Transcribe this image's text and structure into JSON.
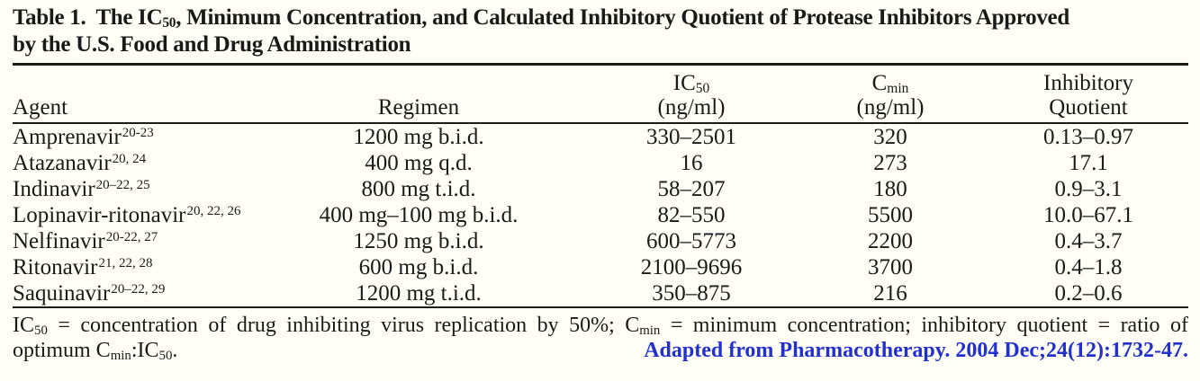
{
  "page": {
    "background_color": "#fffef7",
    "text_color": "#1c1a18",
    "rule_color": "#1c1c1c",
    "citation_blue": "#2130cf"
  },
  "title": {
    "lead": "Table 1.",
    "line1_a": "The IC",
    "line1_sub": "50",
    "line1_b": ", Minimum Concentration, and Calculated Inhibitory Quotient of Protease Inhibitors Approved",
    "line2": "by the U.S. Food and Drug Administration"
  },
  "header": {
    "agent": "Agent",
    "regimen": "Regimen",
    "ic50_abbr": "IC",
    "ic50_sub": "50",
    "ic50_unit": "(ng/ml)",
    "cmin_abbr": "C",
    "cmin_sub": "min",
    "cmin_unit": "(ng/ml)",
    "iq_line1": "Inhibitory",
    "iq_line2": "Quotient"
  },
  "rows": [
    {
      "agent": "Amprenavir",
      "refs": "20-23",
      "regimen": "1200 mg b.i.d.",
      "ic50": "330–2501",
      "cmin": "320",
      "iq": "0.13–0.97"
    },
    {
      "agent": "Atazanavir",
      "refs": "20, 24",
      "regimen": "400 mg q.d.",
      "ic50": "16",
      "cmin": "273",
      "iq": "17.1"
    },
    {
      "agent": "Indinavir",
      "refs": "20–22, 25",
      "regimen": "800 mg t.i.d.",
      "ic50": "58–207",
      "cmin": "180",
      "iq": "0.9–3.1"
    },
    {
      "agent": "Lopinavir-ritonavir",
      "refs": "20, 22, 26",
      "regimen": "400 mg–100 mg b.i.d.",
      "ic50": "82–550",
      "cmin": "5500",
      "iq": "10.0–67.1"
    },
    {
      "agent": "Nelfinavir",
      "refs": "20-22, 27",
      "regimen": "1250 mg b.i.d.",
      "ic50": "600–5773",
      "cmin": "2200",
      "iq": "0.4–3.7"
    },
    {
      "agent": "Ritonavir",
      "refs": "21, 22, 28",
      "regimen": "600 mg b.i.d.",
      "ic50": "2100–9696",
      "cmin": "3700",
      "iq": "0.4–1.8"
    },
    {
      "agent": "Saquinavir",
      "refs": "20–22, 29",
      "regimen": "1200 mg t.i.d.",
      "ic50": "350–875",
      "cmin": "216",
      "iq": "0.2–0.6"
    }
  ],
  "footnote": {
    "l1_a": "IC",
    "l1_a_sub": "50",
    "l1_b": " = concentration of drug inhibiting virus replication by 50%; C",
    "l1_b_sub": "min",
    "l1_c": " = minimum concentration; inhibitory quotient = ratio of",
    "l2_a": "optimum C",
    "l2_a_sub": "min",
    "l2_b": ":IC",
    "l2_b_sub": "50",
    "l2_c": "."
  },
  "attribution": "Adapted from Pharmacotherapy. 2004 Dec;24(12):1732-47."
}
